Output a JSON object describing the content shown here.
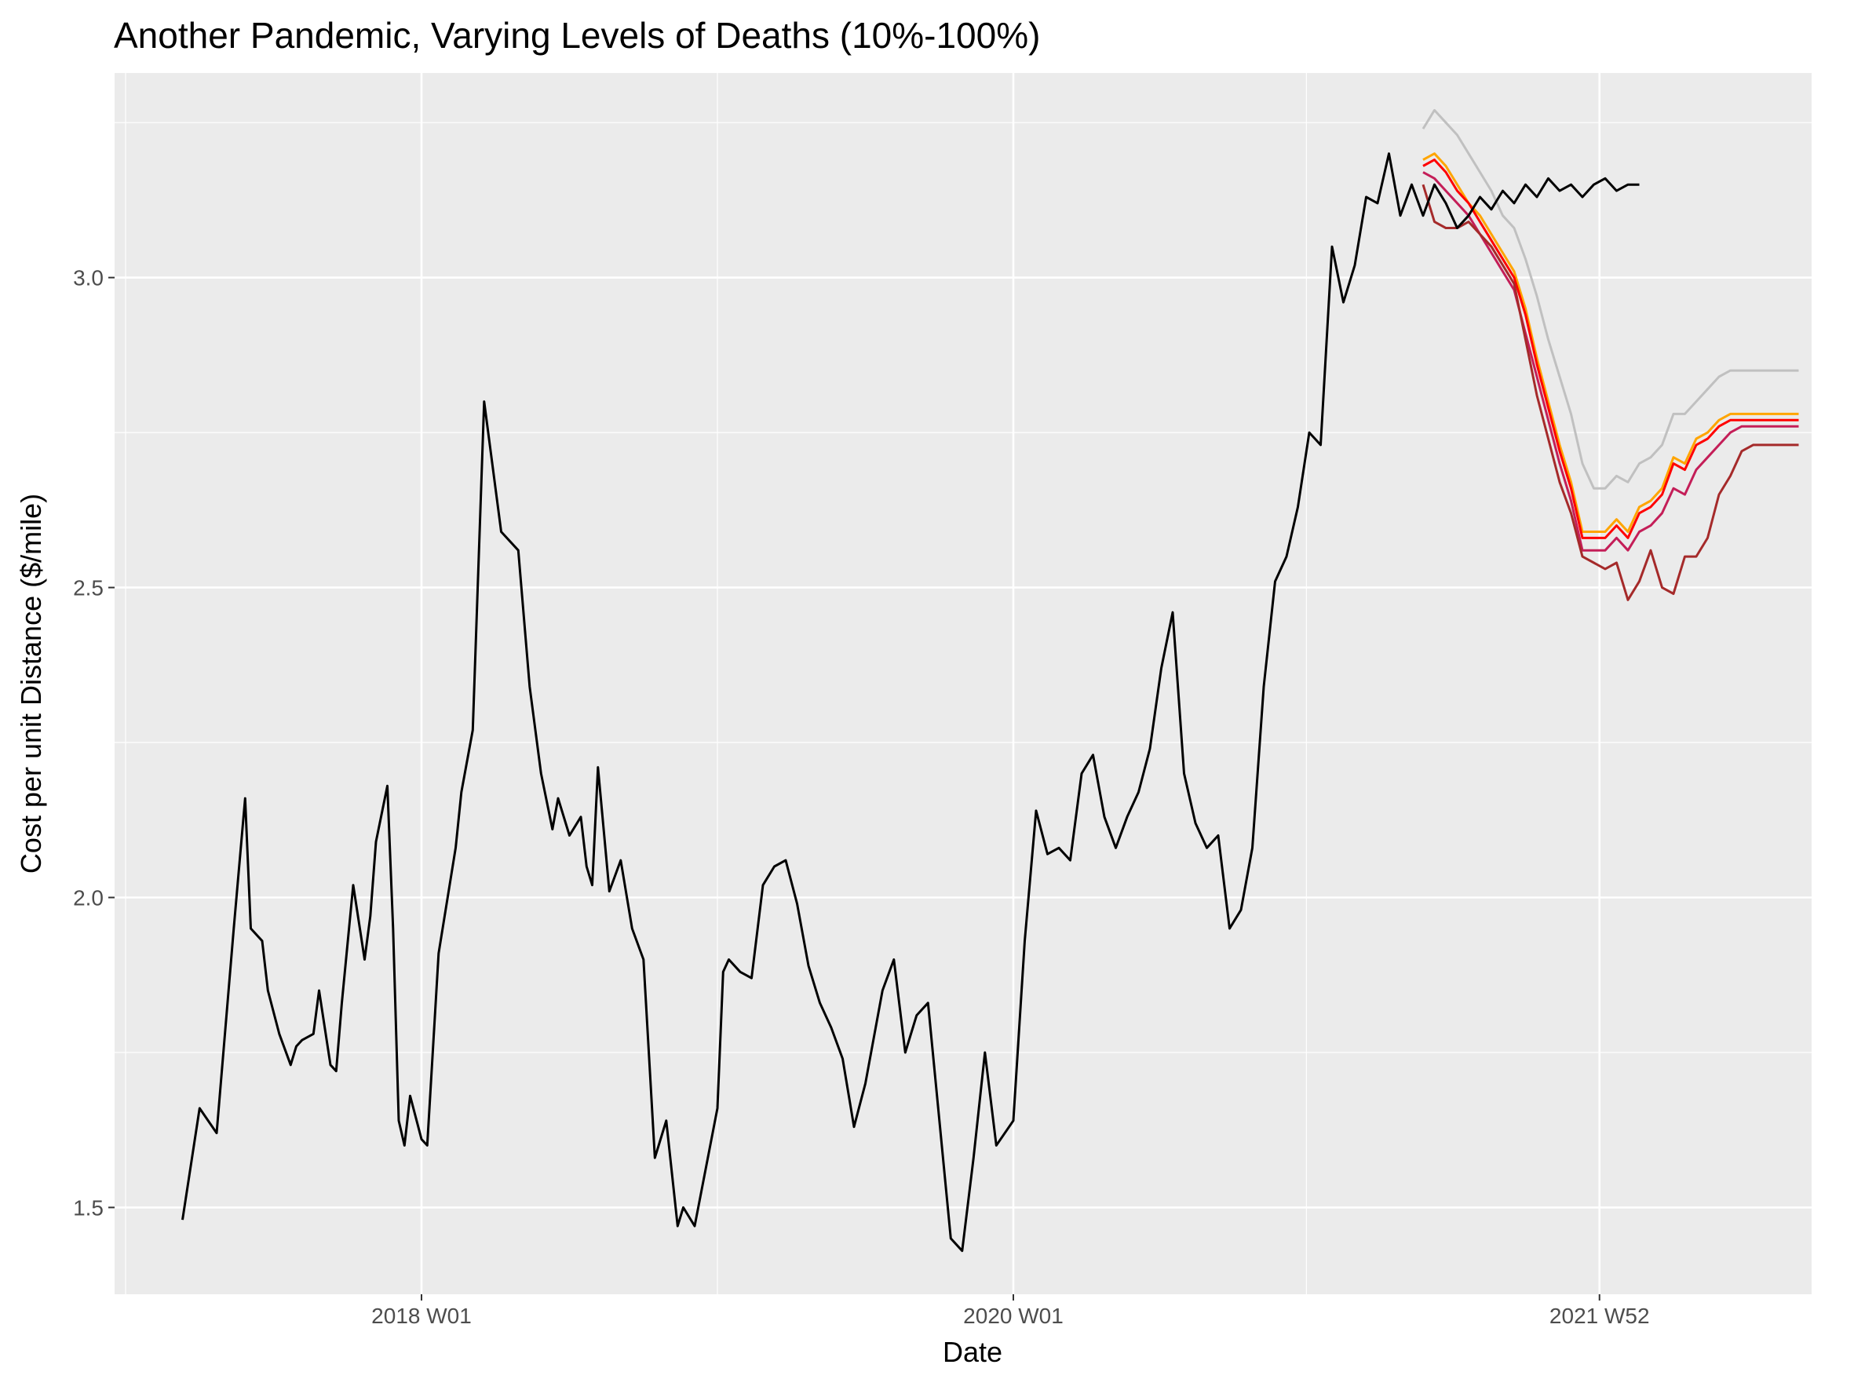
{
  "chart_data": {
    "type": "line",
    "title": "Another Pandemic, Varying Levels of Deaths (10%-100%)",
    "xlabel": "Date",
    "ylabel": "Cost per unit Distance ($/mile)",
    "x_unit": "ISO week (year-Wnn)",
    "x_ticks": [
      "2018 W01",
      "2020 W01",
      "2021 W52"
    ],
    "y_ticks": [
      1.5,
      2.0,
      2.5,
      3.0
    ],
    "xlim": [
      "2017 W04",
      "2023 W01"
    ],
    "ylim": [
      1.36,
      3.33
    ],
    "grid": true,
    "legend": "none",
    "colors": {
      "panel_bg": "#ebebeb",
      "grid": "#ffffff",
      "history": "#000000",
      "scenario_a": "#c0c0c0",
      "scenario_b": "#ffa500",
      "scenario_c": "#ff0000",
      "scenario_d": "#c41e58",
      "scenario_e": "#a52a2a"
    },
    "history": {
      "x": [
        "2017 W11",
        "2017 W14",
        "2017 W17",
        "2017 W20",
        "2017 W22",
        "2017 W23",
        "2017 W25",
        "2017 W26",
        "2017 W28",
        "2017 W30",
        "2017 W31",
        "2017 W32",
        "2017 W34",
        "2017 W35",
        "2017 W37",
        "2017 W38",
        "2017 W39",
        "2017 W41",
        "2017 W43",
        "2017 W44",
        "2017 W45",
        "2017 W47",
        "2017 W48",
        "2017 W49",
        "2017 W50",
        "2017 W51",
        "2018 W01",
        "2018 W02",
        "2018 W04",
        "2018 W07",
        "2018 W08",
        "2018 W10",
        "2018 W12",
        "2018 W15",
        "2018 W18",
        "2018 W20",
        "2018 W22",
        "2018 W24",
        "2018 W25",
        "2018 W27",
        "2018 W29",
        "2018 W30",
        "2018 W31",
        "2018 W32",
        "2018 W34",
        "2018 W36",
        "2018 W38",
        "2018 W40",
        "2018 W42",
        "2018 W44",
        "2018 W46",
        "2018 W47",
        "2018 W49",
        "2019 W01",
        "2019 W02",
        "2019 W03",
        "2019 W05",
        "2019 W07",
        "2019 W09",
        "2019 W11",
        "2019 W13",
        "2019 W15",
        "2019 W17",
        "2019 W19",
        "2019 W21",
        "2019 W23",
        "2019 W25",
        "2019 W27",
        "2019 W30",
        "2019 W32",
        "2019 W34",
        "2019 W36",
        "2019 W38",
        "2019 W40",
        "2019 W42",
        "2019 W44",
        "2019 W46",
        "2019 W48",
        "2019 W50",
        "2020 W01",
        "2020 W03",
        "2020 W05",
        "2020 W07",
        "2020 W09",
        "2020 W11",
        "2020 W13",
        "2020 W15",
        "2020 W17",
        "2020 W19",
        "2020 W21",
        "2020 W23",
        "2020 W25",
        "2020 W27",
        "2020 W29",
        "2020 W31",
        "2020 W33",
        "2020 W35",
        "2020 W37",
        "2020 W39",
        "2020 W41",
        "2020 W43",
        "2020 W45",
        "2020 W47",
        "2020 W49",
        "2020 W51",
        "2021 W01",
        "2021 W03",
        "2021 W05",
        "2021 W07",
        "2021 W09",
        "2021 W11",
        "2021 W13",
        "2021 W15",
        "2021 W17",
        "2021 W19",
        "2021 W21",
        "2021 W23",
        "2021 W25",
        "2021 W27",
        "2021 W29",
        "2021 W31",
        "2021 W33",
        "2021 W35",
        "2021 W37",
        "2021 W39",
        "2021 W41",
        "2021 W43",
        "2021 W45",
        "2021 W47",
        "2021 W49",
        "2021 W51",
        "2022 W01",
        "2022 W03",
        "2022 W05",
        "2022 W07"
      ],
      "y": [
        1.48,
        1.66,
        1.62,
        1.95,
        2.16,
        1.95,
        1.93,
        1.85,
        1.78,
        1.73,
        1.76,
        1.77,
        1.78,
        1.85,
        1.73,
        1.72,
        1.83,
        2.02,
        1.9,
        1.97,
        2.09,
        2.18,
        1.95,
        1.64,
        1.6,
        1.68,
        1.61,
        1.6,
        1.91,
        2.08,
        2.17,
        2.27,
        2.8,
        2.59,
        2.56,
        2.34,
        2.2,
        2.11,
        2.16,
        2.1,
        2.13,
        2.05,
        2.02,
        2.21,
        2.01,
        2.06,
        1.95,
        1.9,
        1.58,
        1.64,
        1.47,
        1.5,
        1.47,
        1.66,
        1.88,
        1.9,
        1.88,
        1.87,
        2.02,
        2.05,
        2.06,
        1.99,
        1.89,
        1.83,
        1.79,
        1.74,
        1.63,
        1.7,
        1.85,
        1.9,
        1.75,
        1.81,
        1.83,
        1.64,
        1.45,
        1.43,
        1.58,
        1.75,
        1.6,
        1.64,
        1.93,
        2.14,
        2.07,
        2.08,
        2.06,
        2.2,
        2.23,
        2.13,
        2.08,
        2.13,
        2.17,
        2.24,
        2.37,
        2.46,
        2.2,
        2.12,
        2.08,
        2.1,
        1.95,
        1.98,
        2.08,
        2.34,
        2.51,
        2.55,
        2.63,
        2.75,
        2.73,
        3.05,
        2.96,
        3.02,
        3.13,
        3.12,
        3.2,
        3.1,
        3.15,
        3.1,
        3.15,
        3.12,
        3.08,
        3.1,
        3.13,
        3.11,
        3.14,
        3.12,
        3.15,
        3.13,
        3.16,
        3.14,
        3.15,
        3.13,
        3.15,
        3.16,
        3.14,
        3.15,
        3.15
      ]
    },
    "forecast_x": [
      "2021 W21",
      "2021 W23",
      "2021 W25",
      "2021 W27",
      "2021 W29",
      "2021 W31",
      "2021 W33",
      "2021 W35",
      "2021 W37",
      "2021 W39",
      "2021 W41",
      "2021 W43",
      "2021 W45",
      "2021 W47",
      "2021 W49",
      "2021 W51",
      "2022 W01",
      "2022 W03",
      "2022 W05",
      "2022 W07",
      "2022 W09",
      "2022 W11",
      "2022 W13",
      "2022 W15",
      "2022 W17",
      "2022 W19",
      "2022 W21",
      "2022 W23",
      "2022 W25",
      "2022 W27",
      "2022 W29",
      "2022 W31",
      "2022 W33",
      "2022 W35"
    ],
    "series": [
      {
        "values": [
          3.24,
          3.27,
          3.25,
          3.23,
          3.2,
          3.17,
          3.14,
          3.1,
          3.08,
          3.03,
          2.97,
          2.9,
          2.84,
          2.78,
          2.7,
          2.66,
          2.66,
          2.68,
          2.67,
          2.7,
          2.71,
          2.73,
          2.78,
          2.78,
          2.8,
          2.82,
          2.84,
          2.85,
          2.85,
          2.85,
          2.85,
          2.85,
          2.85,
          2.85
        ]
      },
      {
        "values": [
          3.19,
          3.2,
          3.18,
          3.15,
          3.12,
          3.1,
          3.07,
          3.04,
          3.01,
          2.95,
          2.87,
          2.8,
          2.73,
          2.67,
          2.59,
          2.59,
          2.59,
          2.61,
          2.59,
          2.63,
          2.64,
          2.66,
          2.71,
          2.7,
          2.74,
          2.75,
          2.77,
          2.78,
          2.78,
          2.78,
          2.78,
          2.78,
          2.78,
          2.78
        ]
      },
      {
        "values": [
          3.18,
          3.19,
          3.17,
          3.14,
          3.12,
          3.09,
          3.06,
          3.03,
          3.0,
          2.94,
          2.86,
          2.79,
          2.72,
          2.66,
          2.58,
          2.58,
          2.58,
          2.6,
          2.58,
          2.62,
          2.63,
          2.65,
          2.7,
          2.69,
          2.73,
          2.74,
          2.76,
          2.77,
          2.77,
          2.77,
          2.77,
          2.77,
          2.77,
          2.77
        ]
      },
      {
        "values": [
          3.17,
          3.16,
          3.14,
          3.12,
          3.1,
          3.07,
          3.04,
          3.01,
          2.98,
          2.91,
          2.84,
          2.77,
          2.7,
          2.64,
          2.56,
          2.56,
          2.56,
          2.58,
          2.56,
          2.59,
          2.6,
          2.62,
          2.66,
          2.65,
          2.69,
          2.71,
          2.73,
          2.75,
          2.76,
          2.76,
          2.76,
          2.76,
          2.76,
          2.76
        ]
      },
      {
        "values": [
          3.15,
          3.09,
          3.08,
          3.08,
          3.09,
          3.07,
          3.05,
          3.02,
          2.99,
          2.9,
          2.81,
          2.74,
          2.67,
          2.62,
          2.55,
          2.54,
          2.53,
          2.54,
          2.48,
          2.51,
          2.56,
          2.5,
          2.49,
          2.55,
          2.55,
          2.58,
          2.65,
          2.68,
          2.72,
          2.73,
          2.73,
          2.73,
          2.73,
          2.73
        ]
      }
    ]
  }
}
